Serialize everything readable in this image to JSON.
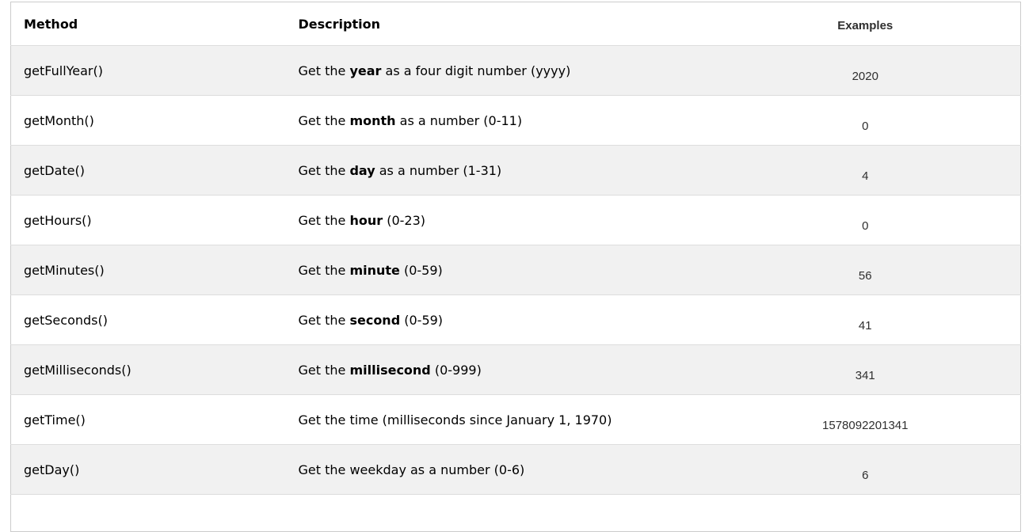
{
  "table": {
    "headers": {
      "method": "Method",
      "description": "Description",
      "examples": "Examples"
    },
    "rows": [
      {
        "method": "getFullYear()",
        "description": [
          {
            "text": "Get the ",
            "bold": false
          },
          {
            "text": "year",
            "bold": true
          },
          {
            "text": " as a four digit number (yyyy)",
            "bold": false
          }
        ],
        "example": "2020"
      },
      {
        "method": "getMonth()",
        "description": [
          {
            "text": "Get the ",
            "bold": false
          },
          {
            "text": "month",
            "bold": true
          },
          {
            "text": " as a number (0-11)",
            "bold": false
          }
        ],
        "example": "0"
      },
      {
        "method": "getDate()",
        "description": [
          {
            "text": "Get the ",
            "bold": false
          },
          {
            "text": "day",
            "bold": true
          },
          {
            "text": " as a number (1-31)",
            "bold": false
          }
        ],
        "example": "4"
      },
      {
        "method": "getHours()",
        "description": [
          {
            "text": "Get the ",
            "bold": false
          },
          {
            "text": "hour",
            "bold": true
          },
          {
            "text": " (0-23)",
            "bold": false
          }
        ],
        "example": "0"
      },
      {
        "method": "getMinutes()",
        "description": [
          {
            "text": "Get the ",
            "bold": false
          },
          {
            "text": "minute",
            "bold": true
          },
          {
            "text": " (0-59)",
            "bold": false
          }
        ],
        "example": "56"
      },
      {
        "method": "getSeconds()",
        "description": [
          {
            "text": "Get the ",
            "bold": false
          },
          {
            "text": "second",
            "bold": true
          },
          {
            "text": " (0-59)",
            "bold": false
          }
        ],
        "example": "41"
      },
      {
        "method": "getMilliseconds()",
        "description": [
          {
            "text": "Get the ",
            "bold": false
          },
          {
            "text": "millisecond",
            "bold": true
          },
          {
            "text": " (0-999)",
            "bold": false
          }
        ],
        "example": "341"
      },
      {
        "method": "getTime()",
        "description": [
          {
            "text": "Get the time (milliseconds since January 1, 1970)",
            "bold": false
          }
        ],
        "example": "1578092201341"
      },
      {
        "method": "getDay()",
        "description": [
          {
            "text": "Get the weekday as a number (0-6)",
            "bold": false
          }
        ],
        "example": "6"
      }
    ],
    "colors": {
      "stripe_background": "#f1f1f1",
      "row_border": "#dddddd",
      "outer_border": "#cccccc",
      "text": "#000000",
      "example_text": "#2f2f2f"
    }
  }
}
